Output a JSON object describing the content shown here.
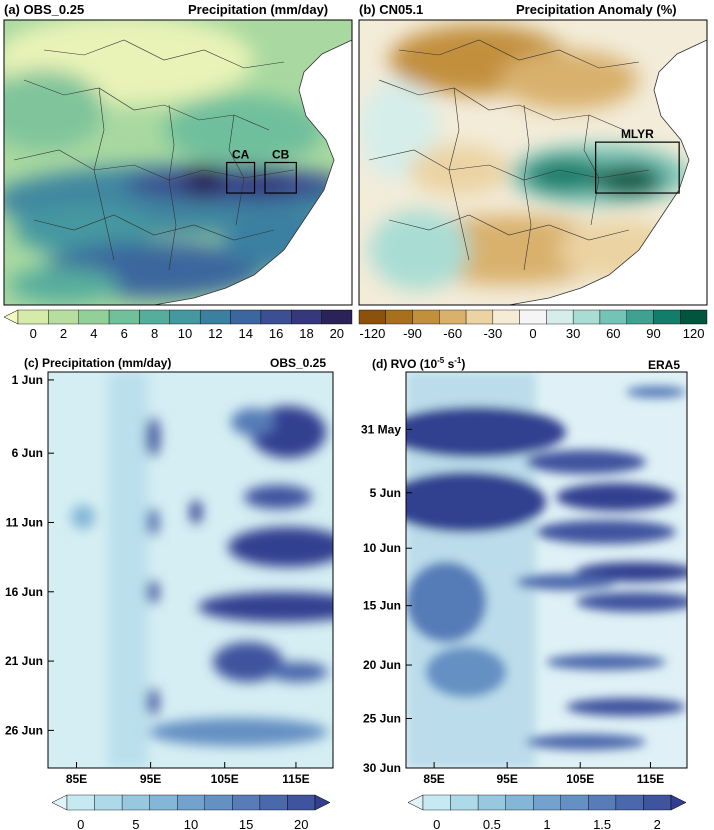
{
  "chart_data": [
    {
      "id": "a",
      "type": "heatmap",
      "title": "(a) OBS_0.25",
      "subtitle": "Precipitation (mm/day)",
      "colorbar_ticks": [
        "0",
        "2",
        "4",
        "6",
        "8",
        "10",
        "12",
        "14",
        "16",
        "18",
        "20"
      ],
      "colorbar_range": [
        0,
        20
      ],
      "colors": [
        "#f3f7c0",
        "#d6eaa9",
        "#b7dd9f",
        "#93cf99",
        "#72c09a",
        "#57ad9c",
        "#4598a0",
        "#3b7fa1",
        "#3b669e",
        "#3b4f92",
        "#36387e",
        "#2b2257"
      ],
      "boxes": [
        {
          "label": "CA",
          "lon_range": [
            108,
            112
          ],
          "lat_range": [
            28,
            31
          ]
        },
        {
          "label": "CB",
          "lon_range": [
            113.5,
            118
          ],
          "lat_range": [
            28,
            31
          ]
        }
      ]
    },
    {
      "id": "b",
      "type": "heatmap",
      "title": "(b) CN05.1",
      "subtitle": "Precipitation Anomaly (%)",
      "colorbar_ticks": [
        "-120",
        "-90",
        "-60",
        "-30",
        "0",
        "30",
        "60",
        "90",
        "120"
      ],
      "colorbar_range": [
        -120,
        120
      ],
      "colors": [
        "#8c510a",
        "#a8701c",
        "#c28f3c",
        "#d9b16d",
        "#ebd3a3",
        "#f6ebd5",
        "#f5f5f5",
        "#d6eeea",
        "#a9ddd4",
        "#73c3b6",
        "#3fa291",
        "#137d6b",
        "#01543e"
      ],
      "boxes": [
        {
          "label": "MLYR",
          "lon_range": [
            110,
            122
          ],
          "lat_range": [
            28,
            33
          ]
        }
      ]
    },
    {
      "id": "c",
      "type": "heatmap",
      "title": "(c) Precipitation (mm/day)",
      "subtitle": "OBS_0.25",
      "x_ticks": [
        "85E",
        "95E",
        "105E",
        "115E"
      ],
      "y_ticks": [
        "1 Jun",
        "6 Jun",
        "11 Jun",
        "16 Jun",
        "21 Jun",
        "26 Jun"
      ],
      "colorbar_ticks": [
        "0",
        "5",
        "10",
        "15",
        "20"
      ],
      "colorbar_range": [
        0,
        20
      ],
      "colors": [
        "#e0f3f8",
        "#c7e9f1",
        "#aed9e9",
        "#97c8e0",
        "#83b6d7",
        "#72a2cd",
        "#6590c3",
        "#577cb8",
        "#4b68ac",
        "#3f539f",
        "#323f90"
      ]
    },
    {
      "id": "d",
      "type": "heatmap",
      "title": "(d) RVO (10",
      "title_exp": "-5",
      "title_unit": " s",
      "title_exp2": "-1",
      "title_close": ")",
      "subtitle": "ERA5",
      "x_ticks": [
        "85E",
        "95E",
        "105E",
        "115E"
      ],
      "y_ticks": [
        "31 May",
        "5 Jun",
        "10 Jun",
        "15 Jun",
        "20 Jun",
        "25 Jun",
        "30 Jun"
      ],
      "colorbar_ticks": [
        "0",
        "0.5",
        "1",
        "1.5",
        "2"
      ],
      "colorbar_range": [
        0,
        2
      ],
      "colors": [
        "#e0f3f8",
        "#c7e9f1",
        "#aed9e9",
        "#97c8e0",
        "#83b6d7",
        "#72a2cd",
        "#6590c3",
        "#577cb8",
        "#4b68ac",
        "#3f539f",
        "#323f90"
      ]
    }
  ]
}
